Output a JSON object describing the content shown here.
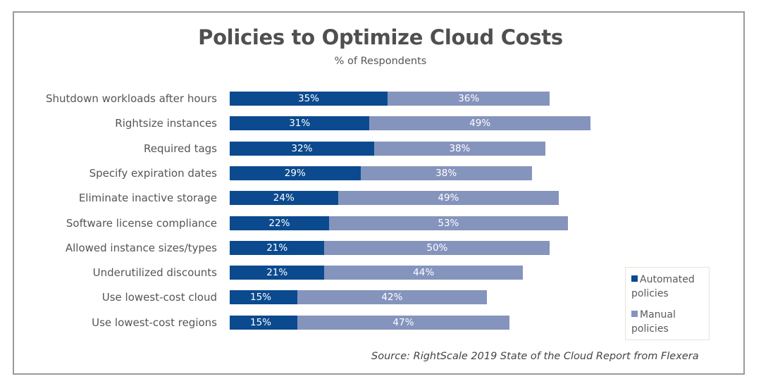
{
  "chart_data": {
    "type": "bar",
    "orientation": "horizontal",
    "stacked": true,
    "title": "Policies to Optimize Cloud Costs",
    "subtitle": "% of Respondents",
    "xlabel": "",
    "ylabel": "",
    "xlim": [
      0,
      100
    ],
    "grid": false,
    "legend_position": "bottom-right",
    "categories": [
      "Shutdown workloads after hours",
      "Rightsize instances",
      "Required tags",
      "Specify expiration dates",
      "Eliminate inactive storage",
      "Software license compliance",
      "Allowed instance sizes/types",
      "Underutilized discounts",
      "Use lowest-cost cloud",
      "Use lowest-cost regions"
    ],
    "series": [
      {
        "name": "Automated policies",
        "color": "#0b4a8f",
        "values": [
          35,
          31,
          32,
          29,
          24,
          22,
          21,
          21,
          15,
          15
        ]
      },
      {
        "name": "Manual policies",
        "color": "#8594bd",
        "values": [
          36,
          49,
          38,
          38,
          49,
          53,
          50,
          44,
          42,
          47
        ]
      }
    ],
    "value_suffix": "%",
    "source": "Source: RightScale 2019 State of the Cloud Report from Flexera"
  },
  "legend": {
    "items": [
      {
        "line1": "Automated",
        "line2": "policies",
        "color": "#0b4a8f"
      },
      {
        "line1": "Manual",
        "line2": "policies",
        "color": "#8594bd"
      }
    ]
  }
}
